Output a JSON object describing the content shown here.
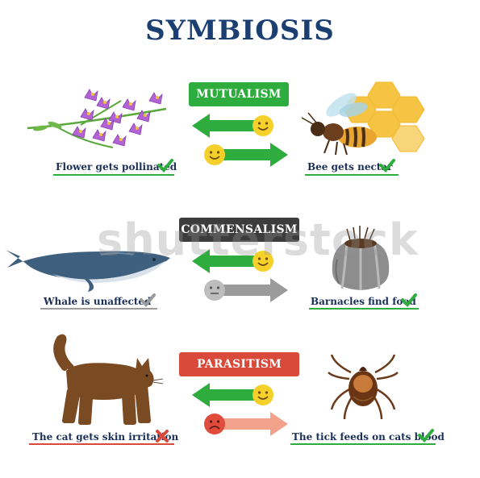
{
  "title": "SYMBIOSIS",
  "watermark": "shutterstock",
  "colors": {
    "title": "#1c3f72",
    "mutualism": "#2eac3d",
    "commensalism": "#3c3c3c",
    "parasitism": "#d94a3a",
    "arrow_green": "#2eac3d",
    "arrow_gray": "#9b9b9b",
    "arrow_pink": "#f2a28a",
    "caption": "#1a2f57"
  },
  "sections": [
    {
      "badge": "MUTUALISM",
      "left_caption": "Flower gets pollinated",
      "right_caption": "Bee gets nectar",
      "left_mark": "check-icon",
      "right_mark": "check-icon",
      "left_face": "happy",
      "right_face": "happy"
    },
    {
      "badge": "COMMENSALISM",
      "left_caption": "Whale is unaffected",
      "right_caption": "Barnacles find food",
      "left_mark": "gray-check-icon",
      "right_mark": "check-icon",
      "left_face": "neutral",
      "right_face": "happy"
    },
    {
      "badge": "PARASITISM",
      "left_caption": "The cat gets skin irritation",
      "right_caption": "The tick feeds on cats blood",
      "left_mark": "cross-icon",
      "right_mark": "check-icon",
      "left_face": "sad",
      "right_face": "happy"
    }
  ]
}
